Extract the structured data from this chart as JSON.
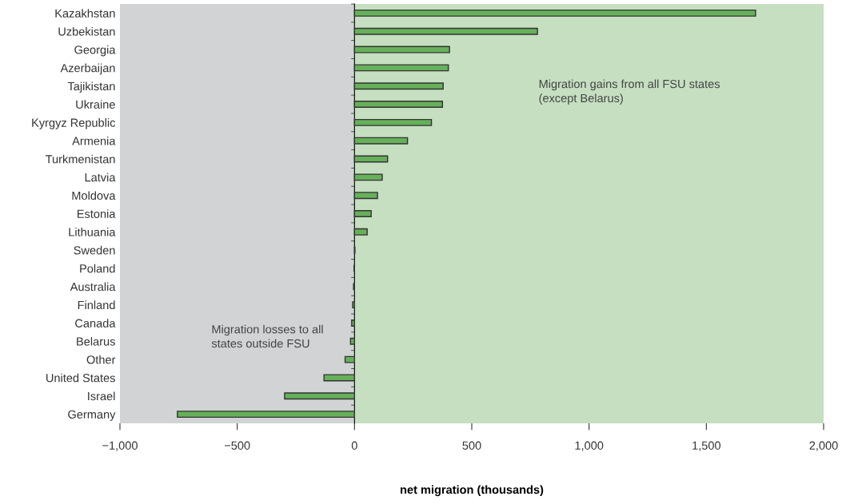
{
  "chart_data": {
    "type": "bar",
    "orientation": "horizontal",
    "xlabel": "net migration (thousands)",
    "categories": [
      "Kazakhstan",
      "Uzbekistan",
      "Georgia",
      "Azerbaijan",
      "Tajikistan",
      "Ukraine",
      "Kyrgyz Republic",
      "Armenia",
      "Turkmenistan",
      "Latvia",
      "Moldova",
      "Estonia",
      "Lithuania",
      "Sweden",
      "Poland",
      "Australia",
      "Finland",
      "Canada",
      "Belarus",
      "Other",
      "United States",
      "Israel",
      "Germany"
    ],
    "values": [
      1710,
      780,
      405,
      400,
      378,
      375,
      328,
      226,
      141,
      118,
      98,
      71,
      54,
      2,
      -2,
      -4,
      -8,
      -12,
      -17,
      -40,
      -130,
      -298,
      -755
    ],
    "color": "#66b05a",
    "xlim": [
      -1000,
      2000
    ],
    "xticks": [
      {
        "value": -1000,
        "label": "−1,000"
      },
      {
        "value": -500,
        "label": "−500"
      },
      0,
      500,
      {
        "value": 1000,
        "label": "1,000"
      },
      {
        "value": 1500,
        "label": "1,500"
      },
      {
        "value": 2000,
        "label": "2,000"
      }
    ],
    "bands": [
      {
        "axis": "x",
        "from": -1000,
        "to": 0,
        "label": "Migration losses to all\nstates outside FSU",
        "color": "#d1d3d4"
      },
      {
        "axis": "x",
        "from": 0,
        "to": 2000,
        "label": "Migration gains from all FSU states\n(except Belarus)",
        "color": "#c5dfc0"
      }
    ],
    "legend": false
  }
}
